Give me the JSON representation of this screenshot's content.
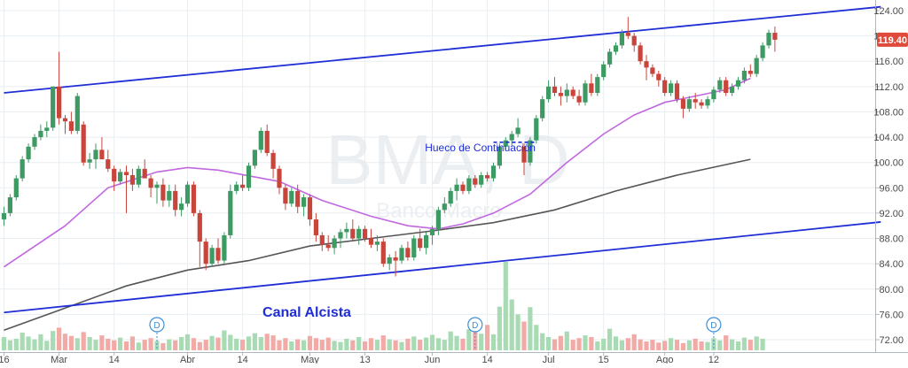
{
  "chart_data": {
    "type": "candlestick",
    "watermark": "BMA, D",
    "watermark_sub": "Banco Macro",
    "ylim": [
      70,
      124.6
    ],
    "y_ticks": [
      "72.00",
      "76.00",
      "80.00",
      "84.00",
      "88.00",
      "92.00",
      "96.00",
      "100.00",
      "104.00",
      "108.00",
      "112.00",
      "116.00",
      "120.00",
      "124.00"
    ],
    "last_price": "119.40",
    "x_tick_labels": [
      {
        "label": "16",
        "index": 0
      },
      {
        "label": "Mar",
        "index": 9
      },
      {
        "label": "14",
        "index": 18
      },
      {
        "label": "Abr",
        "index": 30
      },
      {
        "label": "14",
        "index": 39
      },
      {
        "label": "May",
        "index": 50
      },
      {
        "label": "13",
        "index": 59
      },
      {
        "label": "Jun",
        "index": 70
      },
      {
        "label": "14",
        "index": 79
      },
      {
        "label": "Jul",
        "index": 89
      },
      {
        "label": "15",
        "index": 98
      },
      {
        "label": "Ago",
        "index": 108
      },
      {
        "label": "12",
        "index": 116
      }
    ],
    "candles": [
      [
        91,
        93,
        90,
        92
      ],
      [
        92,
        95,
        91.5,
        94.5
      ],
      [
        94.5,
        98,
        94,
        97.5
      ],
      [
        97.5,
        101,
        97,
        100.5
      ],
      [
        100.5,
        103,
        100,
        102.5
      ],
      [
        102.5,
        104.5,
        102,
        104
      ],
      [
        104,
        106,
        103.5,
        105
      ],
      [
        105,
        106.5,
        104,
        105.5
      ],
      [
        105.5,
        112,
        105,
        112
      ],
      [
        112,
        117.5,
        106,
        107
      ],
      [
        107,
        107.5,
        104.5,
        106.5
      ],
      [
        106.5,
        108,
        104.5,
        105
      ],
      [
        105,
        111,
        104.5,
        110.5
      ],
      [
        106,
        106.5,
        99.5,
        100
      ],
      [
        100,
        101.5,
        99,
        100.5
      ],
      [
        100.5,
        103,
        99,
        102
      ],
      [
        102,
        104,
        100.5,
        100.5
      ],
      [
        100.5,
        102,
        98.5,
        99
      ],
      [
        99,
        99.5,
        95.5,
        97
      ],
      [
        97,
        99,
        96.5,
        98.5
      ],
      [
        98.5,
        99.5,
        92,
        98
      ],
      [
        98,
        99,
        95.5,
        96.5
      ],
      [
        96.5,
        99.5,
        96,
        99
      ],
      [
        99,
        100.5,
        97.5,
        97.5
      ],
      [
        97.5,
        98,
        94.5,
        96
      ],
      [
        96,
        97,
        93.5,
        96.5
      ],
      [
        96.5,
        97.5,
        93,
        94
      ],
      [
        94,
        96.5,
        93,
        95.5
      ],
      [
        95.5,
        96.5,
        91.5,
        92.5
      ],
      [
        92.5,
        94.5,
        91.5,
        93.5
      ],
      [
        93.5,
        97,
        93,
        96.5
      ],
      [
        96.5,
        97,
        91.5,
        92
      ],
      [
        92,
        92.5,
        83.5,
        87.5
      ],
      [
        87.5,
        88,
        83,
        84
      ],
      [
        84,
        87,
        83.5,
        86.5
      ],
      [
        86.5,
        88,
        84,
        84.5
      ],
      [
        84.5,
        89,
        84,
        88.5
      ],
      [
        88.5,
        96.5,
        88,
        95.5
      ],
      [
        95.5,
        97,
        95,
        96.5
      ],
      [
        96.5,
        98,
        95.5,
        96
      ],
      [
        96,
        100,
        95.5,
        99.5
      ],
      [
        99.5,
        102,
        99,
        102
      ],
      [
        102,
        105.5,
        101.5,
        105
      ],
      [
        105,
        106,
        101,
        101.5
      ],
      [
        101.5,
        102,
        97.5,
        99
      ],
      [
        99,
        99.5,
        95,
        96
      ],
      [
        96,
        96.5,
        92.5,
        93.5
      ],
      [
        93.5,
        96,
        93,
        95.5
      ],
      [
        95.5,
        96.5,
        92,
        93
      ],
      [
        93,
        95,
        91.5,
        94.5
      ],
      [
        94.5,
        95,
        90,
        91
      ],
      [
        91,
        92,
        87.5,
        88.5
      ],
      [
        88.5,
        89,
        86,
        87
      ],
      [
        87,
        88.5,
        86,
        86.5
      ],
      [
        86.5,
        88.5,
        85.5,
        88
      ],
      [
        88,
        89.5,
        86.5,
        89
      ],
      [
        89,
        90.5,
        88,
        89.5
      ],
      [
        89.5,
        91,
        87.5,
        88
      ],
      [
        88,
        90,
        87,
        89.5
      ],
      [
        89.5,
        90,
        87.5,
        88
      ],
      [
        88,
        89.5,
        86.5,
        87
      ],
      [
        87,
        88.5,
        86,
        87.5
      ],
      [
        87.5,
        88,
        83.5,
        84
      ],
      [
        84,
        85.5,
        83,
        85
      ],
      [
        85,
        86,
        82,
        84.5
      ],
      [
        84.5,
        87,
        84,
        86.5
      ],
      [
        86.5,
        87.5,
        84.5,
        85
      ],
      [
        85,
        88.5,
        84.5,
        88
      ],
      [
        88,
        89.5,
        86,
        86.5
      ],
      [
        86.5,
        89,
        85.5,
        88.5
      ],
      [
        88.5,
        90,
        87,
        89.5
      ],
      [
        89.5,
        93,
        88.5,
        92.5
      ],
      [
        92.5,
        94.5,
        92,
        93.5
      ],
      [
        93.5,
        96,
        93,
        95.5
      ],
      [
        95.5,
        97.5,
        94,
        96.5
      ],
      [
        96.5,
        97,
        95,
        95.5
      ],
      [
        95.5,
        98,
        95,
        97.5
      ],
      [
        97.5,
        98,
        96,
        96.5
      ],
      [
        96.5,
        98.5,
        96,
        98
      ],
      [
        98,
        98.5,
        97,
        97.5
      ],
      [
        97.5,
        100,
        97,
        99.5
      ],
      [
        99.5,
        103,
        99,
        102.5
      ],
      [
        102.5,
        104,
        102,
        103.5
      ],
      [
        103.5,
        105,
        102.5,
        104.5
      ],
      [
        104.5,
        107,
        104,
        105.5
      ],
      [
        102.5,
        103,
        98,
        100
      ],
      [
        100,
        104,
        99.5,
        103.5
      ],
      [
        103.5,
        107.5,
        103,
        107
      ],
      [
        107,
        110.5,
        106.5,
        110
      ],
      [
        110,
        113,
        109.5,
        112
      ],
      [
        112,
        113.5,
        110.5,
        111
      ],
      [
        111,
        112,
        109,
        110.5
      ],
      [
        110.5,
        112.5,
        109.5,
        111.5
      ],
      [
        111.5,
        112,
        110,
        110.5
      ],
      [
        110.5,
        111.5,
        109,
        109.5
      ],
      [
        109.5,
        113,
        109,
        112.5
      ],
      [
        112.5,
        114,
        110.5,
        111
      ],
      [
        111,
        114,
        110.5,
        113.5
      ],
      [
        113.5,
        116,
        113,
        115.5
      ],
      [
        115.5,
        118,
        115,
        117.5
      ],
      [
        117.5,
        119,
        117,
        118.5
      ],
      [
        118.5,
        121,
        118,
        120.5
      ],
      [
        120.5,
        123,
        119.5,
        120
      ],
      [
        120,
        120.5,
        117.5,
        118.5
      ],
      [
        118.5,
        119,
        115.5,
        116
      ],
      [
        116,
        117,
        113,
        115
      ],
      [
        115,
        115.5,
        113.5,
        114
      ],
      [
        114,
        114.5,
        112,
        113
      ],
      [
        113,
        113.5,
        110.5,
        111
      ],
      [
        111,
        113,
        110.5,
        112.5
      ],
      [
        112.5,
        113,
        109.5,
        110
      ],
      [
        110,
        110.5,
        107,
        108.5
      ],
      [
        108.5,
        110.5,
        108,
        110
      ],
      [
        110,
        111,
        108.5,
        109.5
      ],
      [
        109.5,
        110,
        108.5,
        109
      ],
      [
        109,
        110.5,
        108.5,
        110
      ],
      [
        110,
        112,
        109.5,
        111.5
      ],
      [
        111.5,
        113.5,
        111,
        113
      ],
      [
        113,
        113.5,
        110.5,
        111
      ],
      [
        111,
        112.5,
        110.5,
        112
      ],
      [
        112,
        113.5,
        111.5,
        113
      ],
      [
        113,
        115,
        112.5,
        114.5
      ],
      [
        114.5,
        115.5,
        113.5,
        114
      ],
      [
        114,
        117,
        113.5,
        116.5
      ],
      [
        116.5,
        119,
        116,
        118.5
      ],
      [
        118.5,
        121,
        118,
        120.5
      ],
      [
        120.5,
        121.5,
        117.5,
        119.4
      ]
    ],
    "volume": [
      2.4,
      1.8,
      2.1,
      3.2,
      2.5,
      2.0,
      2.9,
      1.7,
      3.5,
      4.1,
      3.0,
      2.6,
      2.2,
      3.3,
      2.4,
      1.9,
      2.7,
      2.1,
      1.8,
      2.3,
      1.6,
      2.5,
      1.4,
      1.9,
      2.2,
      1.7,
      1.3,
      2.0,
      1.8,
      2.4,
      2.9,
      2.2,
      1.5,
      1.9,
      2.6,
      2.3,
      3.6,
      2.8,
      2.1,
      1.9,
      2.5,
      3.1,
      2.4,
      3.0,
      2.7,
      1.8,
      2.2,
      1.6,
      2.0,
      1.8,
      2.6,
      2.2,
      1.9,
      2.3,
      1.7,
      1.5,
      2.1,
      1.8,
      2.4,
      1.6,
      2.2,
      1.9,
      2.7,
      2.0,
      1.8,
      1.5,
      2.1,
      2.5,
      1.9,
      2.3,
      2.8,
      2.2,
      1.9,
      3.4,
      2.6,
      2.1,
      3.8,
      5.1,
      3.0,
      4.6,
      2.9,
      7.9,
      16.0,
      9.2,
      6.5,
      5.2,
      7.8,
      4.6,
      3.1,
      2.4,
      2.0,
      2.6,
      3.4,
      1.9,
      2.2,
      2.7,
      2.4,
      1.6,
      2.1,
      3.9,
      2.5,
      1.8,
      2.2,
      2.9,
      2.0,
      1.6,
      1.9,
      1.4,
      1.7,
      2.2,
      1.9,
      1.3,
      1.8,
      2.1,
      1.6,
      1.5,
      2.2,
      1.8,
      2.7,
      2.0,
      1.6,
      2.3,
      1.9,
      2.5,
      2.1
    ],
    "vol_max": 16.0,
    "ma50": [
      [
        0,
        83.5
      ],
      [
        10,
        90.0
      ],
      [
        17,
        96.0
      ],
      [
        25,
        98.5
      ],
      [
        30,
        99.2
      ],
      [
        35,
        98.8
      ],
      [
        45,
        97.0
      ],
      [
        52,
        94.0
      ],
      [
        60,
        91.5
      ],
      [
        66,
        90.0
      ],
      [
        71,
        89.5
      ],
      [
        75,
        90.3
      ],
      [
        80,
        92.0
      ],
      [
        86,
        95.0
      ],
      [
        92,
        100.0
      ],
      [
        98,
        104.5
      ],
      [
        103,
        107.5
      ],
      [
        108,
        109.5
      ],
      [
        113,
        110.5
      ],
      [
        118,
        111.5
      ],
      [
        122,
        113.3
      ]
    ],
    "ma200": [
      [
        0,
        73.5
      ],
      [
        10,
        77.0
      ],
      [
        20,
        80.5
      ],
      [
        30,
        83.0
      ],
      [
        40,
        84.5
      ],
      [
        50,
        86.8
      ],
      [
        60,
        88.0
      ],
      [
        70,
        89.2
      ],
      [
        80,
        90.5
      ],
      [
        90,
        92.5
      ],
      [
        100,
        95.5
      ],
      [
        110,
        98.0
      ],
      [
        122,
        100.5
      ]
    ],
    "upper_channel": [
      [
        0,
        111
      ],
      [
        143.3,
        124.6
      ]
    ],
    "lower_channel": [
      [
        0,
        76.3
      ],
      [
        143.3,
        90.6
      ]
    ],
    "gap_line": {
      "from": 80,
      "to": 87,
      "y": 103.2
    },
    "annotations": {
      "gap": {
        "text": "Hueco de Continuación",
        "index": 79,
        "y": 101.8
      },
      "channel": {
        "text": "Canal Alcista"
      }
    },
    "dividend_markers": [
      {
        "index": 25,
        "label": "D"
      },
      {
        "index": 77,
        "label": "D"
      },
      {
        "index": 116,
        "label": "D"
      }
    ],
    "colors": {
      "up": "#3d9a63",
      "down": "#c9453c",
      "up_vol": "#a8dbb4",
      "down_vol": "#f2aaa6",
      "ma50": "#c167e0",
      "ma200": "#555555",
      "channel": "#1f2ed6",
      "price_tag": "#e04a3a",
      "text_blue": "#1f2ed6"
    }
  }
}
